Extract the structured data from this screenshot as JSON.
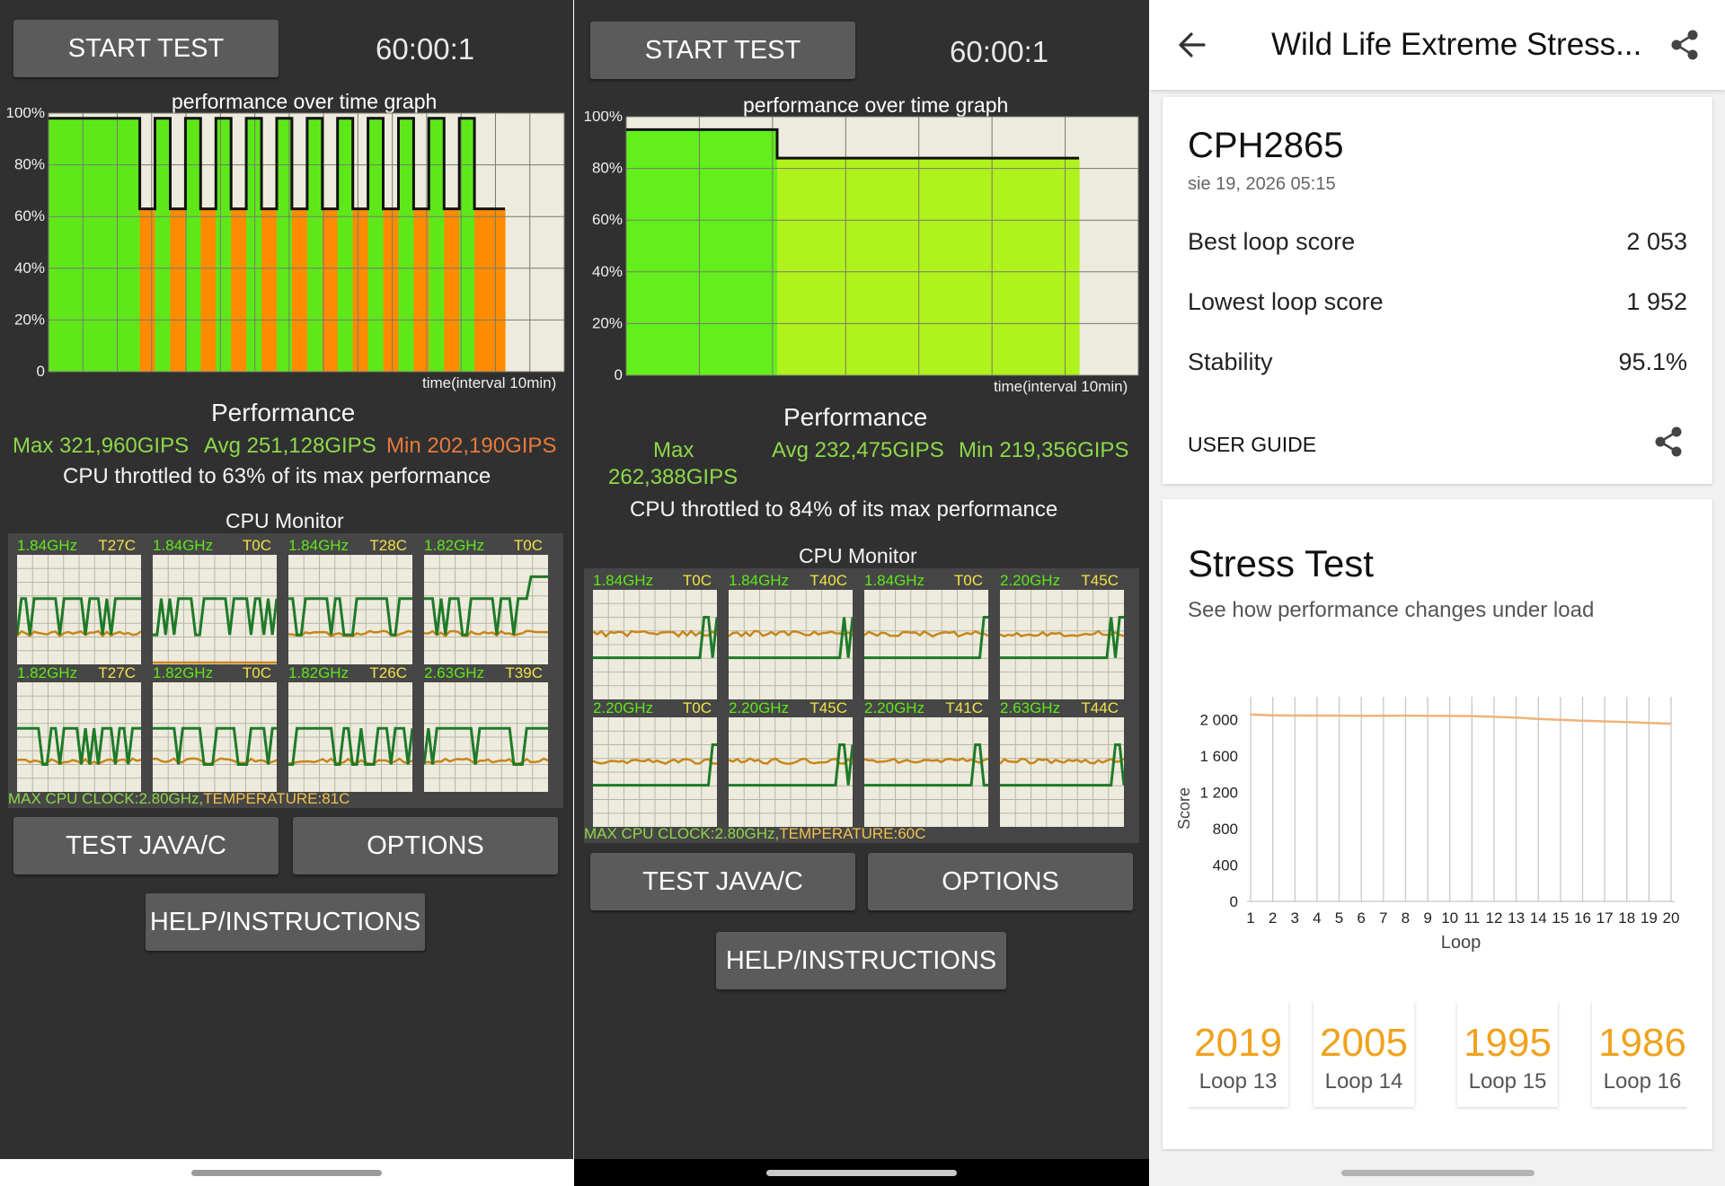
{
  "left_panel": {
    "start_button": "START TEST",
    "timer": "60:00:1",
    "graph_title": "performance over time graph",
    "y_ticks": [
      "100%",
      "80%",
      "60%",
      "40%",
      "20%",
      "0"
    ],
    "x_label": "time(interval 10min)",
    "performance_title": "Performance",
    "max": "Max 321,960GIPS",
    "avg": "Avg 251,128GIPS",
    "min": "Min 202,190GIPS",
    "throttle": "CPU throttled to 63% of its max performance",
    "cpu_monitor_title": "CPU Monitor",
    "cores": [
      {
        "freq": "1.84GHz",
        "temp": "T27C"
      },
      {
        "freq": "1.84GHz",
        "temp": "T0C"
      },
      {
        "freq": "1.84GHz",
        "temp": "T28C"
      },
      {
        "freq": "1.82GHz",
        "temp": "T0C"
      },
      {
        "freq": "1.82GHz",
        "temp": "T27C"
      },
      {
        "freq": "1.82GHz",
        "temp": "T0C"
      },
      {
        "freq": "1.82GHz",
        "temp": "T26C"
      },
      {
        "freq": "2.63GHz",
        "temp": "T39C"
      }
    ],
    "max_clock": "MAX CPU CLOCK:2.80GHz,",
    "temperature": "TEMPERATURE:81C",
    "test_java_button": "TEST JAVA/C",
    "options_button": "OPTIONS",
    "help_button": "HELP/INSTRUCTIONS",
    "performance_series_pct": [
      98,
      98,
      98,
      98,
      98,
      98,
      63,
      98,
      63,
      98,
      63,
      98,
      63,
      98,
      63,
      98,
      63,
      98,
      63,
      98,
      63,
      98,
      63,
      98,
      63,
      98,
      63,
      98,
      63,
      63
    ],
    "segment_colors": [
      "#5ee81a",
      "#ff8c00"
    ]
  },
  "middle_panel": {
    "start_button": "START TEST",
    "timer": "60:00:1",
    "graph_title": "performance over time graph",
    "y_ticks": [
      "100%",
      "80%",
      "60%",
      "40%",
      "20%",
      "0"
    ],
    "x_label": "time(interval 10min)",
    "performance_title": "Performance",
    "max": "Max",
    "max_value": "262,388GIPS",
    "avg": "Avg 232,475GIPS",
    "min": "Min 219,356GIPS",
    "throttle": "CPU throttled to 84% of its max performance",
    "cpu_monitor_title": "CPU Monitor",
    "cores": [
      {
        "freq": "1.84GHz",
        "temp": "T0C"
      },
      {
        "freq": "1.84GHz",
        "temp": "T40C"
      },
      {
        "freq": "1.84GHz",
        "temp": "T0C"
      },
      {
        "freq": "2.20GHz",
        "temp": "T45C"
      },
      {
        "freq": "2.20GHz",
        "temp": "T0C"
      },
      {
        "freq": "2.20GHz",
        "temp": "T45C"
      },
      {
        "freq": "2.20GHz",
        "temp": "T41C"
      },
      {
        "freq": "2.63GHz",
        "temp": "T44C"
      }
    ],
    "max_clock": "MAX CPU CLOCK:2.80GHz,",
    "temperature": "TEMPERATURE:60C",
    "test_java_button": "TEST JAVA/C",
    "options_button": "OPTIONS",
    "help_button": "HELP/INSTRUCTIONS",
    "performance_series_pct": [
      95,
      95,
      95,
      95,
      95,
      95,
      95,
      95,
      95,
      95,
      95,
      95,
      95,
      95,
      95,
      95,
      95,
      95,
      95,
      84,
      84,
      84,
      84,
      84,
      84,
      84,
      84,
      84,
      84,
      84,
      84,
      84,
      84,
      84,
      84,
      84,
      84,
      84,
      84,
      84,
      84,
      84,
      84,
      84,
      84,
      84,
      84,
      84,
      84,
      84,
      84,
      84,
      84,
      84,
      84,
      84,
      84
    ]
  },
  "right_panel": {
    "title": "Wild Life Extreme Stress...",
    "device": "CPH2865",
    "date": "sie 19, 2026 05:15",
    "best_label": "Best loop score",
    "best_value": "2 053",
    "lowest_label": "Lowest loop score",
    "lowest_value": "1 952",
    "stability_label": "Stability",
    "stability_value": "95.1%",
    "user_guide": "USER GUIDE",
    "stress_title": "Stress Test",
    "stress_subtitle": "See how performance changes under load",
    "loop_cards": [
      {
        "score": "2019",
        "label": "Loop 13"
      },
      {
        "score": "2005",
        "label": "Loop 14"
      },
      {
        "score": "1995",
        "label": "Loop 15"
      },
      {
        "score": "1986",
        "label": "Loop 16"
      }
    ],
    "accent": "#f0a21e"
  },
  "chart_data": {
    "type": "line",
    "title": "",
    "xlabel": "Loop",
    "ylabel": "Score",
    "x": [
      1,
      2,
      3,
      4,
      5,
      6,
      7,
      8,
      9,
      10,
      11,
      12,
      13,
      14,
      15,
      16,
      17,
      18,
      19,
      20
    ],
    "x_tick_labels": [
      "1",
      "2",
      "3",
      "4",
      "5",
      "6",
      "7",
      "8",
      "9",
      "10",
      "11",
      "12",
      "13",
      "14",
      "15",
      "16",
      "17",
      "18",
      "19",
      "20"
    ],
    "y_tick_labels": [
      "2 000",
      "1 600",
      "1 200",
      "800",
      "400",
      "0"
    ],
    "y_ticks": [
      2000,
      1600,
      1200,
      800,
      400,
      0
    ],
    "ylim": [
      0,
      2200
    ],
    "series": [
      {
        "values": [
          2053,
          2045,
          2042,
          2042,
          2041,
          2040,
          2040,
          2041,
          2040,
          2038,
          2036,
          2028,
          2019,
          2005,
          1995,
          1986,
          1978,
          1970,
          1961,
          1952
        ],
        "color": "#f0b27a"
      }
    ],
    "grid": "vertical"
  }
}
